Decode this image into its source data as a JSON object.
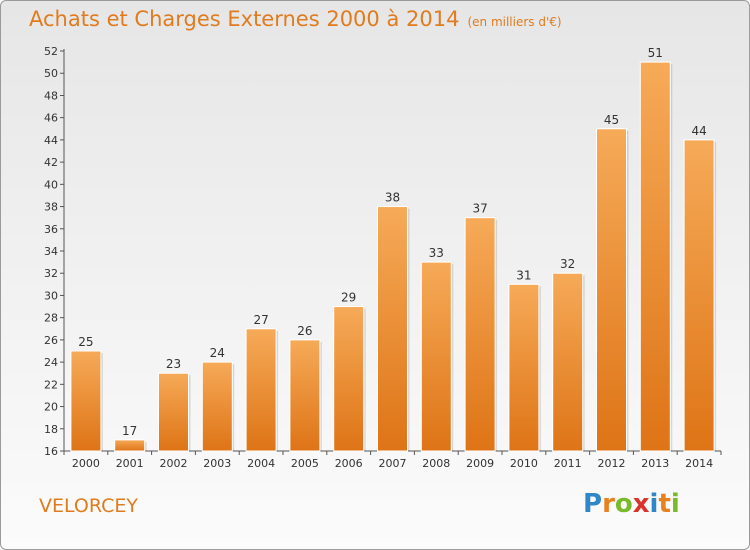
{
  "title": "Achats et Charges Externes 2000 à 2014",
  "subtitle": "(en milliers d'€)",
  "commune": "VELORCEY",
  "logo": {
    "letters": [
      "P",
      "r",
      "o",
      "x",
      "i",
      "t",
      "i"
    ],
    "colors": [
      "#2f86c8",
      "#e8821e",
      "#7ab928",
      "#d9342b",
      "#2f86c8",
      "#e8821e",
      "#7ab928"
    ]
  },
  "colors": {
    "bar_light": "#f4a651",
    "bar_dark": "#e07b1e",
    "title": "#e07b1e"
  },
  "chart_data": {
    "type": "bar",
    "title": "Achats et Charges Externes 2000 à 2014",
    "subtitle": "(en milliers d'€)",
    "xlabel": "",
    "ylabel": "",
    "categories": [
      "2000",
      "2001",
      "2002",
      "2003",
      "2004",
      "2005",
      "2006",
      "2007",
      "2008",
      "2009",
      "2010",
      "2011",
      "2012",
      "2013",
      "2014"
    ],
    "values": [
      25,
      17,
      23,
      24,
      27,
      26,
      29,
      38,
      33,
      37,
      31,
      32,
      45,
      51,
      44
    ],
    "ylim": [
      16,
      52
    ],
    "yticks": [
      16,
      18,
      20,
      22,
      24,
      26,
      28,
      30,
      32,
      34,
      36,
      38,
      40,
      42,
      44,
      46,
      48,
      50,
      52
    ],
    "grid": false,
    "legend": "none"
  }
}
